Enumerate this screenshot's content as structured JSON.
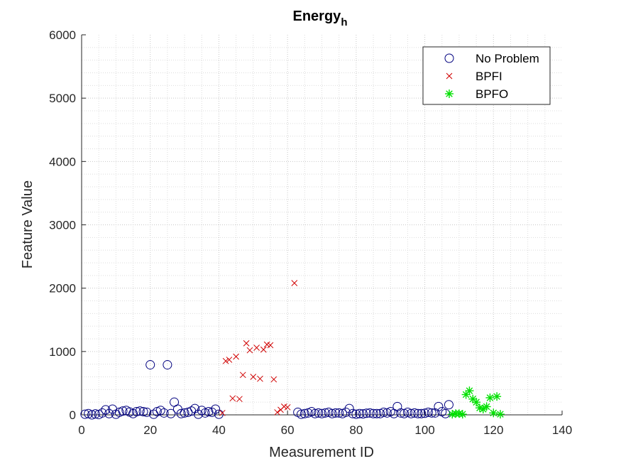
{
  "chart_data": {
    "type": "scatter",
    "title": "Energy",
    "title_subscript": "h",
    "xlabel": "Measurement ID",
    "ylabel": "Feature Value",
    "xlim": [
      0,
      140
    ],
    "ylim": [
      0,
      6000
    ],
    "x_ticks": [
      "0",
      "20",
      "40",
      "60",
      "80",
      "100",
      "120",
      "140"
    ],
    "y_ticks": [
      "0",
      "1000",
      "2000",
      "3000",
      "4000",
      "5000",
      "6000"
    ],
    "grid": "minor-dotted",
    "legend_position": "top-right",
    "series": [
      {
        "name": "No Problem",
        "marker": "circle",
        "color": "#00007f",
        "points": [
          [
            1,
            10
          ],
          [
            2,
            20
          ],
          [
            3,
            0
          ],
          [
            4,
            15
          ],
          [
            5,
            5
          ],
          [
            6,
            30
          ],
          [
            7,
            80
          ],
          [
            8,
            20
          ],
          [
            9,
            90
          ],
          [
            10,
            10
          ],
          [
            11,
            40
          ],
          [
            12,
            60
          ],
          [
            13,
            70
          ],
          [
            14,
            45
          ],
          [
            15,
            20
          ],
          [
            16,
            50
          ],
          [
            17,
            60
          ],
          [
            18,
            50
          ],
          [
            19,
            40
          ],
          [
            20,
            790
          ],
          [
            21,
            10
          ],
          [
            22,
            50
          ],
          [
            23,
            70
          ],
          [
            24,
            30
          ],
          [
            25,
            790
          ],
          [
            26,
            20
          ],
          [
            27,
            200
          ],
          [
            28,
            90
          ],
          [
            29,
            20
          ],
          [
            30,
            30
          ],
          [
            31,
            40
          ],
          [
            32,
            60
          ],
          [
            33,
            100
          ],
          [
            34,
            10
          ],
          [
            35,
            70
          ],
          [
            36,
            30
          ],
          [
            37,
            50
          ],
          [
            38,
            40
          ],
          [
            39,
            90
          ],
          [
            40,
            10
          ],
          [
            63,
            40
          ],
          [
            64,
            10
          ],
          [
            65,
            20
          ],
          [
            66,
            30
          ],
          [
            67,
            50
          ],
          [
            68,
            20
          ],
          [
            69,
            30
          ],
          [
            70,
            20
          ],
          [
            71,
            30
          ],
          [
            72,
            40
          ],
          [
            73,
            20
          ],
          [
            74,
            30
          ],
          [
            75,
            30
          ],
          [
            76,
            20
          ],
          [
            77,
            40
          ],
          [
            78,
            100
          ],
          [
            79,
            20
          ],
          [
            80,
            10
          ],
          [
            81,
            20
          ],
          [
            82,
            15
          ],
          [
            83,
            25
          ],
          [
            84,
            30
          ],
          [
            85,
            20
          ],
          [
            86,
            20
          ],
          [
            87,
            20
          ],
          [
            88,
            40
          ],
          [
            89,
            30
          ],
          [
            90,
            50
          ],
          [
            91,
            20
          ],
          [
            92,
            130
          ],
          [
            93,
            30
          ],
          [
            94,
            20
          ],
          [
            95,
            40
          ],
          [
            96,
            20
          ],
          [
            97,
            30
          ],
          [
            98,
            20
          ],
          [
            99,
            20
          ],
          [
            100,
            25
          ],
          [
            101,
            40
          ],
          [
            102,
            30
          ],
          [
            103,
            30
          ],
          [
            104,
            130
          ],
          [
            105,
            50
          ],
          [
            106,
            20
          ],
          [
            107,
            160
          ]
        ]
      },
      {
        "name": "BPFI",
        "marker": "x",
        "color": "#d00000",
        "points": [
          [
            41,
            30
          ],
          [
            42,
            850
          ],
          [
            43,
            870
          ],
          [
            44,
            260
          ],
          [
            45,
            920
          ],
          [
            46,
            250
          ],
          [
            47,
            630
          ],
          [
            48,
            1130
          ],
          [
            49,
            1020
          ],
          [
            50,
            600
          ],
          [
            51,
            1060
          ],
          [
            52,
            570
          ],
          [
            53,
            1030
          ],
          [
            54,
            1110
          ],
          [
            55,
            1100
          ],
          [
            56,
            560
          ],
          [
            57,
            40
          ],
          [
            58,
            80
          ],
          [
            59,
            130
          ],
          [
            60,
            120
          ],
          [
            62,
            2080
          ]
        ]
      },
      {
        "name": "BPFO",
        "marker": "asterisk",
        "color": "#00e000",
        "points": [
          [
            108,
            10
          ],
          [
            109,
            20
          ],
          [
            110,
            20
          ],
          [
            111,
            10
          ],
          [
            112,
            320
          ],
          [
            113,
            380
          ],
          [
            114,
            250
          ],
          [
            115,
            200
          ],
          [
            116,
            110
          ],
          [
            117,
            90
          ],
          [
            118,
            130
          ],
          [
            119,
            270
          ],
          [
            120,
            30
          ],
          [
            121,
            290
          ],
          [
            122,
            10
          ]
        ]
      }
    ]
  }
}
